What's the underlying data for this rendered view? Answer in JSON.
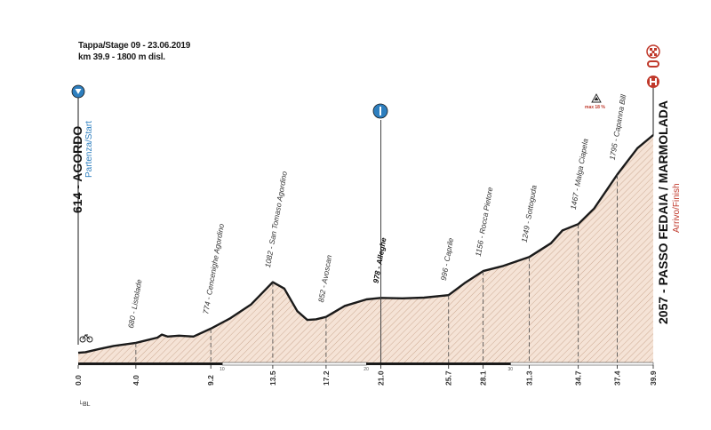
{
  "header": {
    "line1": "Tappa/Stage 09 - 23.06.2019",
    "line2": "km 39.9 - 1800 m disl."
  },
  "start": {
    "label": "614 - AGORDO",
    "sub": "Partenza/Start"
  },
  "finish": {
    "label": "2057 - PASSO FEDAIA / MARMOLADA",
    "sub": "Arrivo/Finish"
  },
  "summit": {
    "label": "max 18 %"
  },
  "footer_note": "└BL",
  "chart_data": {
    "type": "area",
    "title": "",
    "xlabel": "",
    "ylabel": "",
    "xlim": [
      0,
      39.9
    ],
    "ylim": [
      550,
      2150
    ],
    "profile": [
      [
        0.0,
        614
      ],
      [
        0.5,
        618
      ],
      [
        1.5,
        640
      ],
      [
        2.5,
        660
      ],
      [
        4.0,
        680
      ],
      [
        5.5,
        715
      ],
      [
        5.8,
        735
      ],
      [
        6.2,
        722
      ],
      [
        7.0,
        728
      ],
      [
        8.0,
        722
      ],
      [
        9.2,
        774
      ],
      [
        10.5,
        840
      ],
      [
        12.0,
        935
      ],
      [
        13.5,
        1082
      ],
      [
        14.3,
        1040
      ],
      [
        15.2,
        890
      ],
      [
        15.9,
        832
      ],
      [
        16.5,
        836
      ],
      [
        17.2,
        852
      ],
      [
        18.5,
        925
      ],
      [
        20.0,
        968
      ],
      [
        21.0,
        978
      ],
      [
        22.5,
        975
      ],
      [
        24.0,
        980
      ],
      [
        25.7,
        996
      ],
      [
        26.8,
        1075
      ],
      [
        28.1,
        1156
      ],
      [
        29.5,
        1190
      ],
      [
        31.3,
        1249
      ],
      [
        32.8,
        1340
      ],
      [
        33.6,
        1425
      ],
      [
        34.7,
        1467
      ],
      [
        35.8,
        1570
      ],
      [
        37.4,
        1795
      ],
      [
        38.8,
        1970
      ],
      [
        39.9,
        2057
      ]
    ],
    "waypoints": [
      {
        "km": 4.0,
        "alt": 680,
        "name": "Listolade"
      },
      {
        "km": 9.2,
        "alt": 774,
        "name": "Cencenighe Agordino"
      },
      {
        "km": 13.5,
        "alt": 1082,
        "name": "San Tomaso Agordino"
      },
      {
        "km": 17.2,
        "alt": 852,
        "name": "Avoscan"
      },
      {
        "km": 21.0,
        "alt": 978,
        "name": "Alleghe"
      },
      {
        "km": 25.7,
        "alt": 996,
        "name": "Caprile"
      },
      {
        "km": 28.1,
        "alt": 1156,
        "name": "Rocca Pietore"
      },
      {
        "km": 31.3,
        "alt": 1249,
        "name": "Sottoguda"
      },
      {
        "km": 34.7,
        "alt": 1467,
        "name": "Malga Ciapela"
      },
      {
        "km": 37.4,
        "alt": 1795,
        "name": "Capanna Bill"
      }
    ],
    "km_ticks": [
      "0.0",
      "4.0",
      "9.2",
      "13.5",
      "17.2",
      "21.0",
      "25.7",
      "28.1",
      "31.3",
      "34.7",
      "37.4",
      "39.9"
    ],
    "km_tick_values": [
      0.0,
      4.0,
      9.2,
      13.5,
      17.2,
      21.0,
      25.7,
      28.1,
      31.3,
      34.7,
      37.4,
      39.9
    ],
    "bar_marks": [
      {
        "km": 10,
        "label": "10"
      },
      {
        "km": 20,
        "label": "20"
      },
      {
        "km": 30,
        "label": "30"
      }
    ],
    "colors": {
      "fill": "#f5e3d6",
      "hatch": "#c9a58d",
      "outline": "#1a1a1a",
      "accent": "#2e7fbf",
      "red": "#c0392b"
    }
  }
}
